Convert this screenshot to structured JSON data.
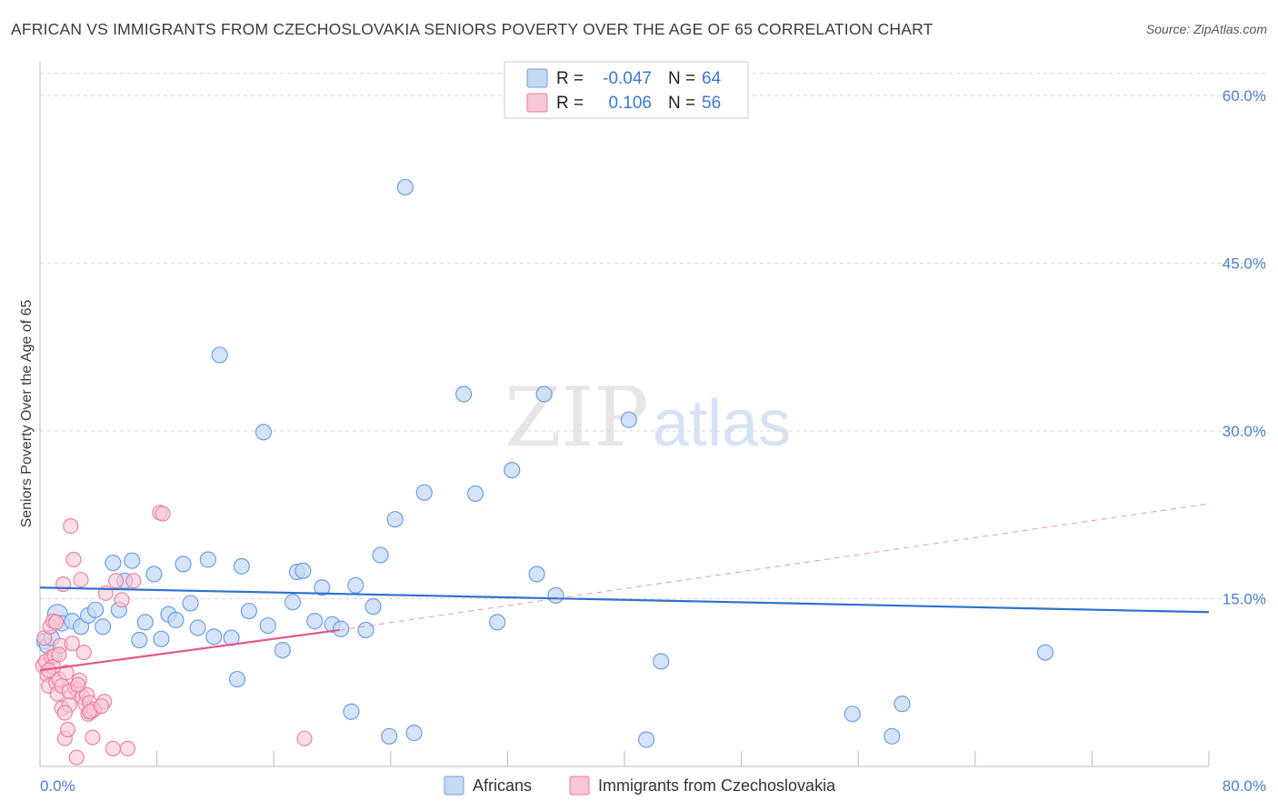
{
  "title": "AFRICAN VS IMMIGRANTS FROM CZECHOSLOVAKIA SENIORS POVERTY OVER THE AGE OF 65 CORRELATION CHART",
  "source": "Source: ZipAtlas.com",
  "watermark": {
    "zip": "ZIP",
    "atlas": "atlas"
  },
  "colors": {
    "blue": "#6f9fe3",
    "blue_fill": "#c5d9f4",
    "blue_line": "#2f72cf",
    "pink": "#ee7aa0",
    "pink_fill": "#f7c7d6",
    "pink_line": "#e3588a"
  },
  "legend": {
    "rows": [
      {
        "r_label": "R =",
        "r_value": "-0.047",
        "n_label": "N =",
        "n_value": "64"
      },
      {
        "r_label": "R =",
        "r_value": "0.106",
        "n_label": "N =",
        "n_value": "56"
      }
    ]
  },
  "bottom_legend": [
    "Africans",
    "Immigrants from Czechoslovakia"
  ],
  "chart_data": {
    "type": "scatter",
    "title": "AFRICAN VS IMMIGRANTS FROM CZECHOSLOVAKIA SENIORS POVERTY OVER THE AGE OF 65 CORRELATION CHART",
    "xlabel": "",
    "ylabel": "Seniors Poverty Over the Age of 65",
    "xlim": [
      0,
      80
    ],
    "ylim": [
      0,
      62
    ],
    "x_tick_labels": [
      "0.0%",
      "80.0%"
    ],
    "y_ticks": [
      15,
      30,
      45,
      60
    ],
    "y_tick_labels": [
      "15.0%",
      "30.0%",
      "45.0%",
      "60.0%"
    ],
    "series": [
      {
        "name": "Africans",
        "R": -0.047,
        "N": 64,
        "trend": {
          "x": [
            0,
            80
          ],
          "y": [
            16.0,
            13.8
          ]
        },
        "points": [
          [
            0.3,
            11.2
          ],
          [
            0.5,
            10.8
          ],
          [
            0.8,
            11.5
          ],
          [
            1.2,
            13.6
          ],
          [
            1.5,
            12.8
          ],
          [
            2.2,
            13.0
          ],
          [
            2.8,
            12.5
          ],
          [
            3.3,
            13.5
          ],
          [
            3.8,
            14.0
          ],
          [
            4.3,
            12.5
          ],
          [
            5.0,
            18.2
          ],
          [
            5.4,
            14.0
          ],
          [
            5.8,
            16.6
          ],
          [
            6.3,
            18.4
          ],
          [
            6.8,
            11.3
          ],
          [
            7.2,
            12.9
          ],
          [
            7.8,
            17.2
          ],
          [
            8.3,
            11.4
          ],
          [
            8.8,
            13.6
          ],
          [
            9.3,
            13.1
          ],
          [
            9.8,
            18.1
          ],
          [
            10.3,
            14.6
          ],
          [
            10.8,
            12.4
          ],
          [
            11.5,
            18.5
          ],
          [
            11.9,
            11.6
          ],
          [
            12.3,
            36.8
          ],
          [
            13.1,
            11.5
          ],
          [
            13.5,
            7.8
          ],
          [
            13.8,
            17.9
          ],
          [
            14.3,
            13.9
          ],
          [
            15.3,
            29.9
          ],
          [
            15.6,
            12.6
          ],
          [
            16.6,
            10.4
          ],
          [
            17.3,
            14.7
          ],
          [
            17.6,
            17.4
          ],
          [
            18.0,
            17.5
          ],
          [
            18.8,
            13.0
          ],
          [
            19.3,
            16.0
          ],
          [
            20.0,
            12.7
          ],
          [
            20.6,
            12.3
          ],
          [
            21.3,
            4.9
          ],
          [
            21.6,
            16.2
          ],
          [
            22.3,
            12.2
          ],
          [
            22.8,
            14.3
          ],
          [
            23.3,
            18.9
          ],
          [
            23.9,
            2.7
          ],
          [
            24.3,
            22.1
          ],
          [
            25.0,
            51.8
          ],
          [
            25.6,
            3.0
          ],
          [
            26.3,
            24.5
          ],
          [
            29.0,
            33.3
          ],
          [
            29.8,
            24.4
          ],
          [
            31.3,
            12.9
          ],
          [
            32.3,
            26.5
          ],
          [
            34.0,
            17.2
          ],
          [
            34.5,
            33.3
          ],
          [
            35.3,
            15.3
          ],
          [
            40.3,
            31.0
          ],
          [
            41.5,
            2.4
          ],
          [
            42.5,
            9.4
          ],
          [
            55.6,
            4.7
          ],
          [
            58.3,
            2.7
          ],
          [
            59.0,
            5.6
          ],
          [
            68.8,
            10.2
          ]
        ]
      },
      {
        "name": "Immigrants from Czechoslovakia",
        "R": 0.106,
        "N": 56,
        "trend": {
          "x": [
            0,
            20.5
          ],
          "y": [
            8.6,
            12.2
          ]
        },
        "trend_dashed": {
          "x": [
            20.5,
            80
          ],
          "y": [
            12.2,
            23.5
          ]
        },
        "points": [
          [
            0.2,
            9.0
          ],
          [
            0.3,
            11.5
          ],
          [
            0.4,
            9.4
          ],
          [
            0.5,
            8.2
          ],
          [
            0.6,
            7.2
          ],
          [
            0.7,
            12.5
          ],
          [
            0.8,
            9.8
          ],
          [
            0.9,
            13.0
          ],
          [
            1.0,
            9.9
          ],
          [
            1.1,
            7.5
          ],
          [
            1.2,
            6.5
          ],
          [
            1.3,
            7.8
          ],
          [
            1.4,
            10.8
          ],
          [
            1.5,
            5.2
          ],
          [
            1.5,
            7.2
          ],
          [
            1.6,
            16.3
          ],
          [
            1.7,
            2.5
          ],
          [
            1.8,
            8.4
          ],
          [
            1.9,
            3.3
          ],
          [
            2.0,
            5.5
          ],
          [
            2.1,
            21.5
          ],
          [
            2.2,
            11.0
          ],
          [
            2.3,
            18.5
          ],
          [
            2.4,
            7.0
          ],
          [
            2.5,
            0.8
          ],
          [
            2.6,
            6.8
          ],
          [
            2.7,
            7.7
          ],
          [
            2.8,
            16.7
          ],
          [
            2.9,
            6.2
          ],
          [
            3.0,
            10.2
          ],
          [
            3.1,
            5.6
          ],
          [
            3.2,
            6.4
          ],
          [
            3.3,
            4.7
          ],
          [
            3.4,
            5.7
          ],
          [
            3.5,
            4.9
          ],
          [
            3.6,
            2.6
          ],
          [
            3.7,
            5.1
          ],
          [
            4.4,
            5.8
          ],
          [
            4.5,
            15.5
          ],
          [
            5.0,
            1.6
          ],
          [
            5.2,
            16.6
          ],
          [
            5.6,
            14.9
          ],
          [
            6.0,
            1.6
          ],
          [
            6.4,
            16.6
          ],
          [
            8.2,
            22.7
          ],
          [
            8.4,
            22.6
          ],
          [
            18.1,
            2.5
          ],
          [
            0.9,
            8.9
          ],
          [
            1.1,
            12.9
          ],
          [
            1.3,
            10.0
          ],
          [
            0.6,
            8.6
          ],
          [
            2.0,
            6.7
          ],
          [
            1.7,
            4.8
          ],
          [
            3.4,
            4.9
          ],
          [
            4.2,
            5.4
          ],
          [
            2.6,
            7.3
          ]
        ]
      }
    ]
  }
}
